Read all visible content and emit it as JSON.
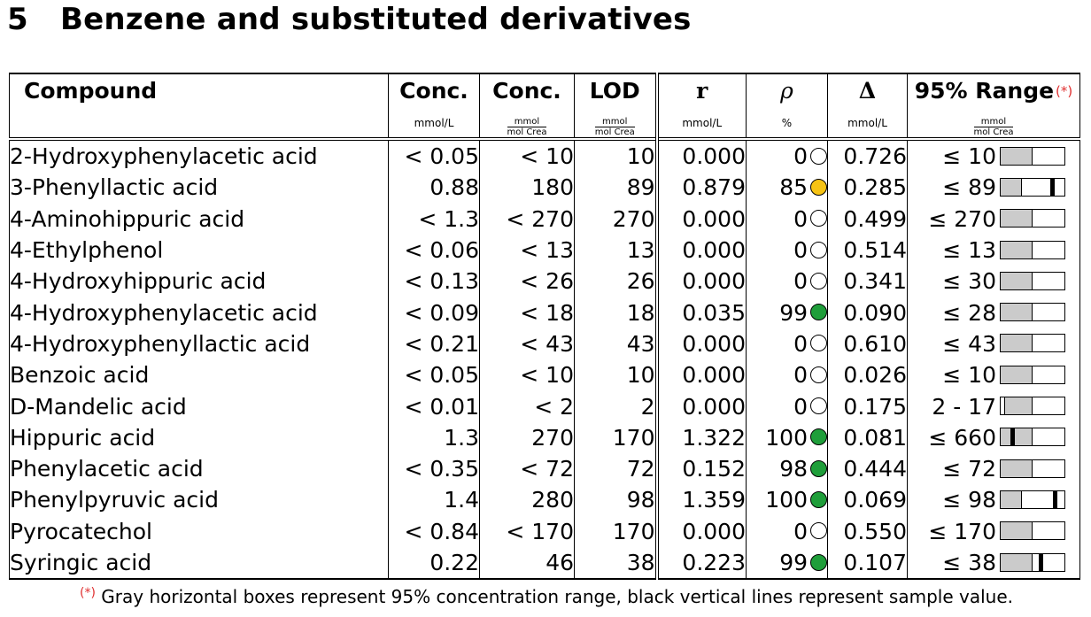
{
  "section": {
    "number": "5",
    "title": "Benzene and substituted derivatives"
  },
  "columns": {
    "compound": "Compound",
    "conc1": "Conc.",
    "conc1_unit": "mmol/L",
    "conc2": "Conc.",
    "conc2_unit_num": "mmol",
    "conc2_unit_den": "mol Crea",
    "lod": "LOD",
    "lod_unit_num": "mmol",
    "lod_unit_den": "mol Crea",
    "r": "r",
    "r_unit": "mmol/L",
    "rho": "ρ",
    "rho_unit": "%",
    "delta": "Δ",
    "delta_unit": "mmol/L",
    "range": "95% Range",
    "range_mark": "(*)",
    "range_unit_num": "mmol",
    "range_unit_den": "mol Crea"
  },
  "colors": {
    "yellow_dot": "#f6c314",
    "green_dot": "#1f9e3a",
    "range_gray": "#cbcbcb",
    "footnote_mark": "#e03030"
  },
  "rows": [
    {
      "name": "2-Hydroxyphenylacetic acid",
      "conc_mmol_l": "< 0.05",
      "conc_crea": "< 10",
      "lod": "10",
      "r": "0.000",
      "rho": "0",
      "dot": "empty",
      "delta": "0.726",
      "range": "≤ 10",
      "range_fill": 0.5,
      "sample": null
    },
    {
      "name": "3-Phenyllactic acid",
      "conc_mmol_l": "0.88",
      "conc_crea": "180",
      "lod": "89",
      "r": "0.879",
      "rho": "85",
      "dot": "yellow",
      "delta": "0.285",
      "range": "≤ 89",
      "range_fill": 0.33,
      "sample": 0.8
    },
    {
      "name": "4-Aminohippuric acid",
      "conc_mmol_l": "< 1.3",
      "conc_crea": "< 270",
      "lod": "270",
      "r": "0.000",
      "rho": "0",
      "dot": "empty",
      "delta": "0.499",
      "range": "≤ 270",
      "range_fill": 0.5,
      "sample": null
    },
    {
      "name": "4-Ethylphenol",
      "conc_mmol_l": "< 0.06",
      "conc_crea": "< 13",
      "lod": "13",
      "r": "0.000",
      "rho": "0",
      "dot": "empty",
      "delta": "0.514",
      "range": "≤ 13",
      "range_fill": 0.5,
      "sample": null
    },
    {
      "name": "4-Hydroxyhippuric acid",
      "conc_mmol_l": "< 0.13",
      "conc_crea": "< 26",
      "lod": "26",
      "r": "0.000",
      "rho": "0",
      "dot": "empty",
      "delta": "0.341",
      "range": "≤ 30",
      "range_fill": 0.5,
      "sample": null
    },
    {
      "name": "4-Hydroxyphenylacetic acid",
      "conc_mmol_l": "< 0.09",
      "conc_crea": "< 18",
      "lod": "18",
      "r": "0.035",
      "rho": "99",
      "dot": "green",
      "delta": "0.090",
      "range": "≤ 28",
      "range_fill": 0.5,
      "sample": null
    },
    {
      "name": "4-Hydroxyphenyllactic acid",
      "conc_mmol_l": "< 0.21",
      "conc_crea": "< 43",
      "lod": "43",
      "r": "0.000",
      "rho": "0",
      "dot": "empty",
      "delta": "0.610",
      "range": "≤ 43",
      "range_fill": 0.5,
      "sample": null
    },
    {
      "name": "Benzoic acid",
      "conc_mmol_l": "< 0.05",
      "conc_crea": "< 10",
      "lod": "10",
      "r": "0.000",
      "rho": "0",
      "dot": "empty",
      "delta": "0.026",
      "range": "≤ 10",
      "range_fill": 0.5,
      "sample": null
    },
    {
      "name": "D-Mandelic acid",
      "conc_mmol_l": "< 0.01",
      "conc_crea": "< 2",
      "lod": "2",
      "r": "0.000",
      "rho": "0",
      "dot": "empty",
      "delta": "0.175",
      "range": "2 - 17",
      "range_fill": 0.5,
      "range_start": 0.05,
      "sample": null
    },
    {
      "name": "Hippuric acid",
      "conc_mmol_l": "1.3",
      "conc_crea": "270",
      "lod": "170",
      "r": "1.322",
      "rho": "100",
      "dot": "green",
      "delta": "0.081",
      "range": "≤ 660",
      "range_fill": 0.5,
      "sample": 0.18
    },
    {
      "name": "Phenylacetic acid",
      "conc_mmol_l": "< 0.35",
      "conc_crea": "< 72",
      "lod": "72",
      "r": "0.152",
      "rho": "98",
      "dot": "green",
      "delta": "0.444",
      "range": "≤ 72",
      "range_fill": 0.5,
      "sample": null
    },
    {
      "name": "Phenylpyruvic acid",
      "conc_mmol_l": "1.4",
      "conc_crea": "280",
      "lod": "98",
      "r": "1.359",
      "rho": "100",
      "dot": "green",
      "delta": "0.069",
      "range": "≤ 98",
      "range_fill": 0.33,
      "sample": 0.85
    },
    {
      "name": "Pyrocatechol",
      "conc_mmol_l": "< 0.84",
      "conc_crea": "< 170",
      "lod": "170",
      "r": "0.000",
      "rho": "0",
      "dot": "empty",
      "delta": "0.550",
      "range": "≤ 170",
      "range_fill": 0.5,
      "sample": null
    },
    {
      "name": "Syringic acid",
      "conc_mmol_l": "0.22",
      "conc_crea": "46",
      "lod": "38",
      "r": "0.223",
      "rho": "99",
      "dot": "green",
      "delta": "0.107",
      "range": "≤ 38",
      "range_fill": 0.5,
      "sample": 0.62
    }
  ],
  "footnote": {
    "mark": "(*)",
    "text": "Gray horizontal boxes represent 95% concentration range, black vertical lines represent sample value."
  }
}
